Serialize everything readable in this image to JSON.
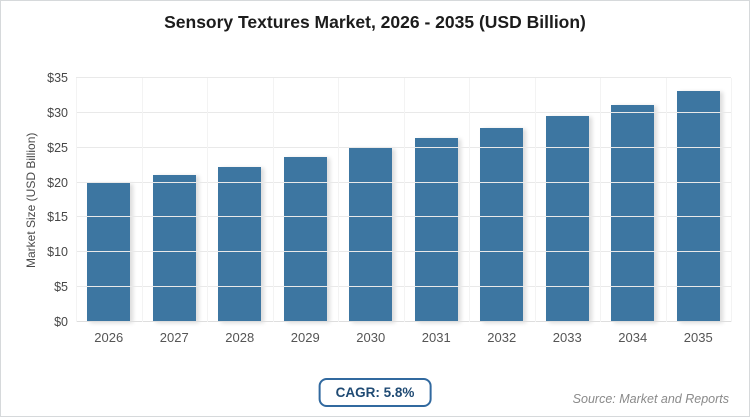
{
  "title": "Sensory Textures Market, 2026 - 2035 (USD Billion)",
  "chart_data": {
    "type": "bar",
    "categories": [
      "2026",
      "2027",
      "2028",
      "2029",
      "2030",
      "2031",
      "2032",
      "2033",
      "2034",
      "2035"
    ],
    "values": [
      19.9,
      21.1,
      22.3,
      23.6,
      24.9,
      26.4,
      27.9,
      29.5,
      31.2,
      33.1
    ],
    "title": "Sensory Textures Market, 2026 - 2035 (USD Billion)",
    "xlabel": "",
    "ylabel": "Market Size (USD Billion)",
    "ylim": [
      0,
      35
    ],
    "ytick_step": 5,
    "ytick_prefix": "$",
    "grid": true,
    "legend": "none",
    "bar_color": "#3d76a1"
  },
  "footer": {
    "cagr_label": "CAGR: 5.8%",
    "source": "Source: Market and Reports"
  },
  "colors": {
    "bar": "#3d76a1",
    "badge_border": "#31699f",
    "badge_text": "#1f4a73",
    "card_border": "#d6d9db"
  }
}
